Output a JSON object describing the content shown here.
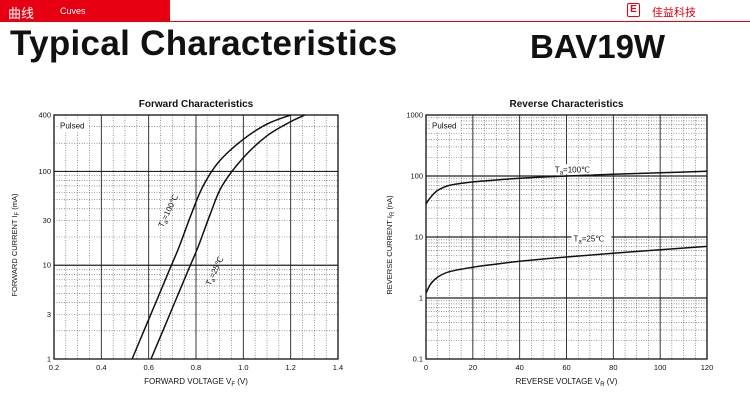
{
  "header": {
    "section_cn": "曲线",
    "section_en": "Cuves",
    "brand_logo": "E",
    "brand_name": "佳益科技"
  },
  "page": {
    "title": "Typical Characteristics",
    "part_number": "BAV19W"
  },
  "chart_data": [
    {
      "type": "line",
      "title": "Forward Characteristics",
      "xlabel": "FORWARD VOLTAGE  V",
      "xlabel_sub": "F",
      "xlabel_unit": "(V)",
      "ylabel": "FORWARD CURRENT  I",
      "ylabel_sub": "F",
      "ylabel_unit": "(mA)",
      "x_scale": "linear",
      "y_scale": "log",
      "xlim": [
        0.2,
        1.4
      ],
      "ylim": [
        1,
        400
      ],
      "x_ticks": [
        "0.2",
        "0.4",
        "0.6",
        "0.8",
        "1.0",
        "1.2",
        "1.4"
      ],
      "y_ticks": [
        {
          "v": 1,
          "label": "1"
        },
        {
          "v": 3,
          "label": "3"
        },
        {
          "v": 10,
          "label": "10"
        },
        {
          "v": 30,
          "label": "30"
        },
        {
          "v": 100,
          "label": "100"
        },
        {
          "v": 400,
          "label": "400"
        }
      ],
      "annotation": "Pulsed",
      "series": [
        {
          "name": "Ta=100°C",
          "label_main": "T",
          "label_sub": "a",
          "label_rest": "=100℃",
          "x": [
            0.53,
            0.58,
            0.63,
            0.68,
            0.73,
            0.78,
            0.83,
            0.9,
            1.0,
            1.1,
            1.2
          ],
          "y": [
            1,
            2,
            4,
            8,
            16,
            35,
            70,
            130,
            220,
            320,
            400
          ]
        },
        {
          "name": "Ta=25°C",
          "label_main": "T",
          "label_sub": "a",
          "label_rest": "=25℃",
          "x": [
            0.61,
            0.66,
            0.71,
            0.76,
            0.81,
            0.86,
            0.91,
            1.0,
            1.1,
            1.2,
            1.26
          ],
          "y": [
            1,
            2,
            4,
            8,
            16,
            35,
            70,
            140,
            240,
            340,
            400
          ]
        }
      ]
    },
    {
      "type": "line",
      "title": "Reverse Characteristics",
      "xlabel": "REVERSE VOLTAGE  V",
      "xlabel_sub": "R",
      "xlabel_unit": "(V)",
      "ylabel": "REVERSE CURRENT  I",
      "ylabel_sub": "R",
      "ylabel_unit": "(nA)",
      "x_scale": "linear",
      "y_scale": "log",
      "xlim": [
        0,
        120
      ],
      "ylim": [
        0.1,
        1000
      ],
      "x_ticks": [
        "0",
        "20",
        "40",
        "60",
        "80",
        "100",
        "120"
      ],
      "y_ticks": [
        {
          "v": 0.1,
          "label": "0.1"
        },
        {
          "v": 1,
          "label": "1"
        },
        {
          "v": 10,
          "label": "10"
        },
        {
          "v": 100,
          "label": "100"
        },
        {
          "v": 1000,
          "label": "1000"
        }
      ],
      "annotation": "Pulsed",
      "series": [
        {
          "name": "Ta=100°C",
          "label_main": "T",
          "label_sub": "a",
          "label_rest": "=100℃",
          "x": [
            0,
            2,
            5,
            10,
            20,
            30,
            40,
            60,
            80,
            100,
            120
          ],
          "y": [
            35,
            45,
            58,
            70,
            80,
            86,
            92,
            100,
            107,
            113,
            120
          ]
        },
        {
          "name": "Ta=25°C",
          "label_main": "T",
          "label_sub": "a",
          "label_rest": "=25℃",
          "x": [
            0,
            2,
            5,
            10,
            20,
            30,
            40,
            60,
            80,
            100,
            120
          ],
          "y": [
            1.2,
            1.7,
            2.2,
            2.7,
            3.2,
            3.6,
            4.0,
            4.7,
            5.4,
            6.2,
            7.0
          ]
        }
      ]
    }
  ]
}
